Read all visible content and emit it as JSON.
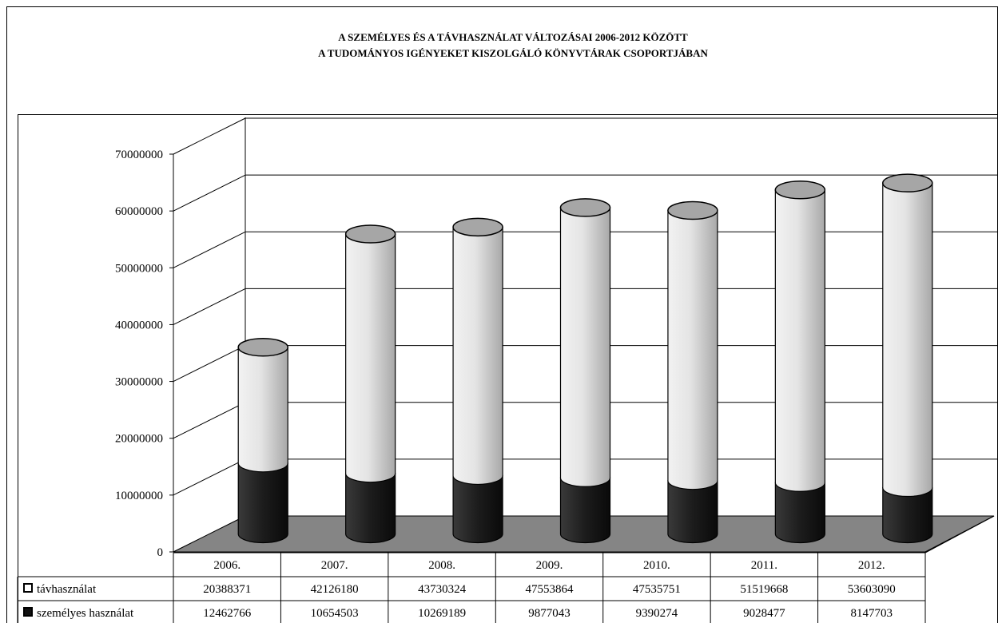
{
  "chart_data": {
    "type": "bar",
    "stacked": true,
    "style": "3d-cylinder",
    "title": "A SZEMÉLYES ÉS A TÁVHASZNÁLAT VÁLTOZÁSAI 2006-2012 KÖZÖTT",
    "subtitle": "A TUDOMÁNYOS IGÉNYEKET KISZOLGÁLÓ KÖNYVTÁRAK CSOPORTJÁBAN",
    "categories": [
      "2006.",
      "2007.",
      "2008.",
      "2009.",
      "2010.",
      "2011.",
      "2012."
    ],
    "series": [
      {
        "name": "távhasználat",
        "color": "#d6d6d6",
        "values": [
          20388371,
          42126180,
          43730324,
          47553864,
          47535751,
          51519668,
          53603090
        ],
        "labels": [
          "20388371",
          "42126180",
          "43730324",
          "47553864",
          "47535751",
          "51519668",
          "53603090"
        ]
      },
      {
        "name": "személyes használat",
        "color": "#1e1e1e",
        "values": [
          12462766,
          10654503,
          10269189,
          9877043,
          9390274,
          9028477,
          8147703
        ],
        "labels": [
          "12462766",
          "10654503",
          "10269189",
          "9877043",
          "9390274",
          "9028477",
          "8147703"
        ]
      }
    ],
    "ylim": [
      0,
      70000000
    ],
    "yticks": [
      "0",
      "10000000",
      "20000000",
      "30000000",
      "40000000",
      "50000000",
      "60000000",
      "70000000"
    ],
    "grid": true,
    "legend": "data-table"
  }
}
